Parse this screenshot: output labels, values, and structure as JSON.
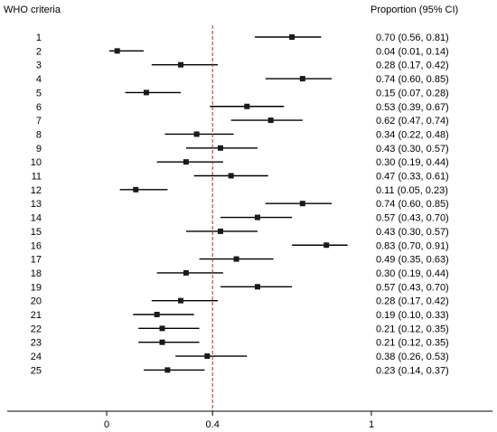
{
  "header": {
    "left": "WHO criteria",
    "right": "Proportion (95% CI)"
  },
  "colors": {
    "line": "#000000",
    "marker": "#1a1a1a",
    "reference_line": "#a0322d"
  },
  "chart_data": {
    "type": "forest",
    "title": "",
    "xlabel": "",
    "ylabel": "",
    "xlim": [
      -0.2,
      1.45
    ],
    "xticks": [
      {
        "value": 0,
        "label": "0"
      },
      {
        "value": 0.4,
        "label": "0.4"
      },
      {
        "value": 1,
        "label": "1"
      }
    ],
    "reference_line": 0.4,
    "rows": [
      {
        "label": "1",
        "est": 0.7,
        "lo": 0.56,
        "hi": 0.81,
        "text": "0.70 (0.56, 0.81)"
      },
      {
        "label": "2",
        "est": 0.04,
        "lo": 0.01,
        "hi": 0.14,
        "text": "0.04 (0.01, 0.14)"
      },
      {
        "label": "3",
        "est": 0.28,
        "lo": 0.17,
        "hi": 0.42,
        "text": "0.28 (0.17, 0.42)"
      },
      {
        "label": "4",
        "est": 0.74,
        "lo": 0.6,
        "hi": 0.85,
        "text": "0.74 (0.60, 0.85)"
      },
      {
        "label": "5",
        "est": 0.15,
        "lo": 0.07,
        "hi": 0.28,
        "text": "0.15 (0.07, 0.28)"
      },
      {
        "label": "6",
        "est": 0.53,
        "lo": 0.39,
        "hi": 0.67,
        "text": "0.53 (0.39, 0.67)"
      },
      {
        "label": "7",
        "est": 0.62,
        "lo": 0.47,
        "hi": 0.74,
        "text": "0.62 (0.47, 0.74)"
      },
      {
        "label": "8",
        "est": 0.34,
        "lo": 0.22,
        "hi": 0.48,
        "text": "0.34 (0.22, 0.48)"
      },
      {
        "label": "9",
        "est": 0.43,
        "lo": 0.3,
        "hi": 0.57,
        "text": "0.43 (0.30, 0.57)"
      },
      {
        "label": "10",
        "est": 0.3,
        "lo": 0.19,
        "hi": 0.44,
        "text": "0.30 (0.19, 0.44)"
      },
      {
        "label": "11",
        "est": 0.47,
        "lo": 0.33,
        "hi": 0.61,
        "text": "0.47 (0.33, 0.61)"
      },
      {
        "label": "12",
        "est": 0.11,
        "lo": 0.05,
        "hi": 0.23,
        "text": "0.11 (0.05, 0.23)"
      },
      {
        "label": "13",
        "est": 0.74,
        "lo": 0.6,
        "hi": 0.85,
        "text": "0.74 (0.60, 0.85)"
      },
      {
        "label": "14",
        "est": 0.57,
        "lo": 0.43,
        "hi": 0.7,
        "text": "0.57 (0.43, 0.70)"
      },
      {
        "label": "15",
        "est": 0.43,
        "lo": 0.3,
        "hi": 0.57,
        "text": "0.43 (0.30, 0.57)"
      },
      {
        "label": "16",
        "est": 0.83,
        "lo": 0.7,
        "hi": 0.91,
        "text": "0.83 (0.70, 0.91)"
      },
      {
        "label": "17",
        "est": 0.49,
        "lo": 0.35,
        "hi": 0.63,
        "text": "0.49 (0.35, 0.63)"
      },
      {
        "label": "18",
        "est": 0.3,
        "lo": 0.19,
        "hi": 0.44,
        "text": "0.30 (0.19, 0.44)"
      },
      {
        "label": "19",
        "est": 0.57,
        "lo": 0.43,
        "hi": 0.7,
        "text": "0.57 (0.43, 0.70)"
      },
      {
        "label": "20",
        "est": 0.28,
        "lo": 0.17,
        "hi": 0.42,
        "text": "0.28 (0.17, 0.42)"
      },
      {
        "label": "21",
        "est": 0.19,
        "lo": 0.1,
        "hi": 0.33,
        "text": "0.19 (0.10, 0.33)"
      },
      {
        "label": "22",
        "est": 0.21,
        "lo": 0.12,
        "hi": 0.35,
        "text": "0.21 (0.12, 0.35)"
      },
      {
        "label": "23",
        "est": 0.21,
        "lo": 0.12,
        "hi": 0.35,
        "text": "0.21 (0.12, 0.35)"
      },
      {
        "label": "24",
        "est": 0.38,
        "lo": 0.26,
        "hi": 0.53,
        "text": "0.38 (0.26, 0.53)"
      },
      {
        "label": "25",
        "est": 0.23,
        "lo": 0.14,
        "hi": 0.37,
        "text": "0.23 (0.14, 0.37)"
      }
    ]
  }
}
